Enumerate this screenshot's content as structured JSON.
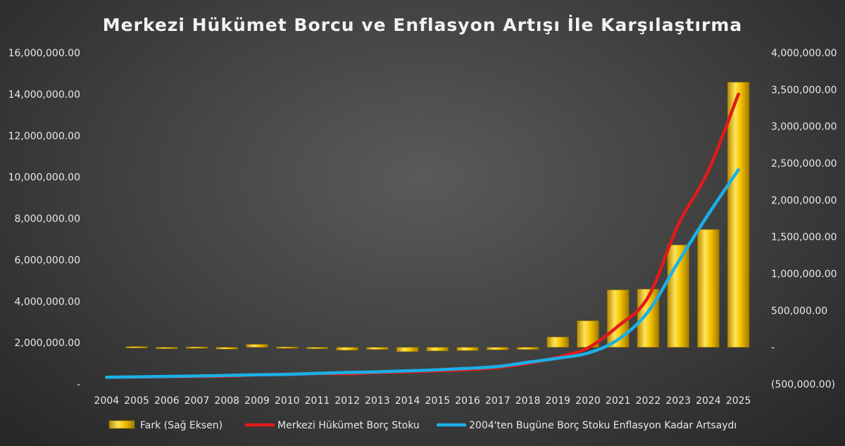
{
  "chart_data": {
    "type": "bar+line",
    "title": "Merkezi Hükümet Borcu ve Enflasyon Artışı İle Karşılaştırma",
    "categories": [
      "2004",
      "2005",
      "2006",
      "2007",
      "2008",
      "2009",
      "2010",
      "2011",
      "2012",
      "2013",
      "2014",
      "2015",
      "2016",
      "2017",
      "2018",
      "2019",
      "2020",
      "2021",
      "2022",
      "2023",
      "2024",
      "2025"
    ],
    "left_axis": {
      "min": 0,
      "max": 16000000,
      "tick_labels": [
        "-",
        "2,000,000.00",
        "4,000,000.00",
        "6,000,000.00",
        "8,000,000.00",
        "10,000,000.00",
        "12,000,000.00",
        "14,000,000.00",
        "16,000,000.00"
      ]
    },
    "right_axis": {
      "min": -500000,
      "max": 4000000,
      "tick_labels": [
        "(500,000.00)",
        "-",
        "500,000.00",
        "1,000,000.00",
        "1,500,000.00",
        "2,000,000.00",
        "2,500,000.00",
        "3,000,000.00",
        "3,500,000.00",
        "4,000,000.00"
      ]
    },
    "legend_position": "bottom",
    "grid": false,
    "series": [
      {
        "name": "Fark (Sağ Eksen)",
        "type": "bar",
        "axis": "right",
        "color": "#f2c200",
        "values": [
          null,
          10000,
          -15000,
          5000,
          -25000,
          40000,
          5000,
          -20000,
          -40000,
          -30000,
          -60000,
          -50000,
          -45000,
          -35000,
          -30000,
          140000,
          360000,
          780000,
          790000,
          1390000,
          1600000,
          3600000
        ]
      },
      {
        "name": "Merkezi Hükümet Borç Stoku",
        "type": "line",
        "axis": "left",
        "color": "#e21a1a",
        "values": [
          330000,
          345000,
          360000,
          370000,
          390000,
          450000,
          480000,
          510000,
          500000,
          560000,
          590000,
          640000,
          700000,
          800000,
          1000000,
          1300000,
          1750000,
          2800000,
          4200000,
          7700000,
          10300000,
          14000000
        ]
      },
      {
        "name": "2004'ten Bugüne Borç Stoku Enflasyon Kadar Artsaydı",
        "type": "line",
        "axis": "left",
        "color": "#1ab0e8",
        "values": [
          330000,
          350000,
          370000,
          390000,
          420000,
          450000,
          470000,
          520000,
          560000,
          590000,
          640000,
          690000,
          760000,
          850000,
          1050000,
          1250000,
          1500000,
          2150000,
          3500000,
          5900000,
          8200000,
          10350000
        ]
      }
    ]
  }
}
